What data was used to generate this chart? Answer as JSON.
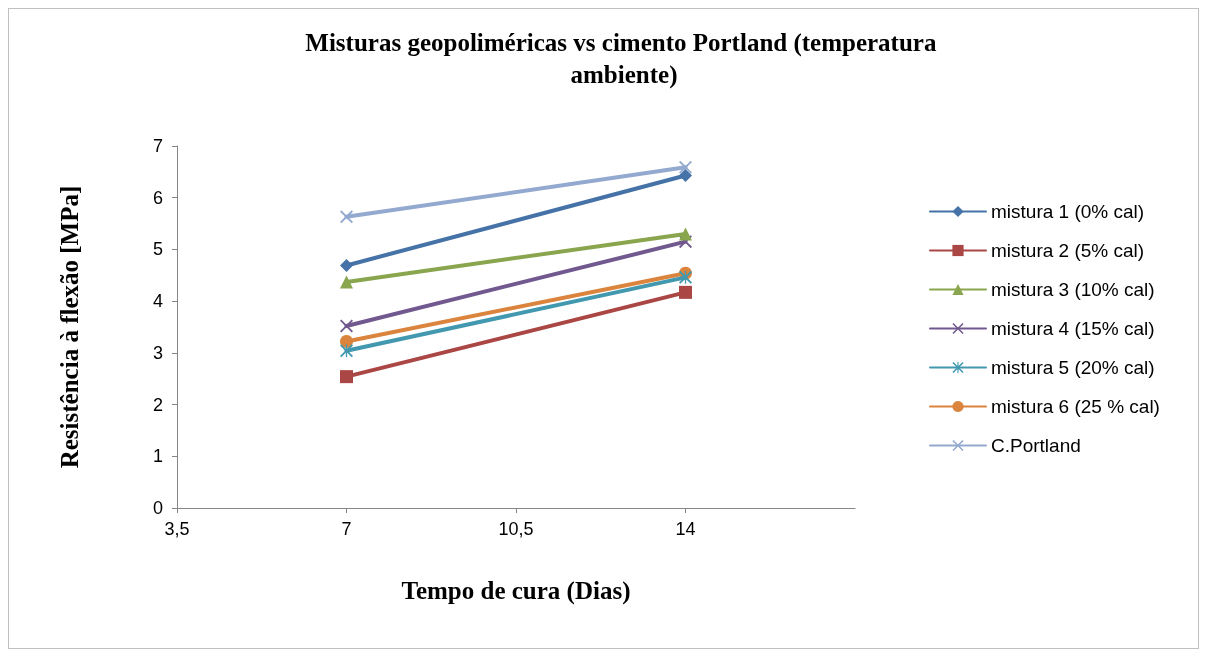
{
  "chart_data": {
    "type": "line",
    "title": "Misturas geopoliméricas vs cimento Portland (temperatura ambiente)",
    "xlabel": "Tempo de cura (Dias)",
    "ylabel": "Resistência à flexão [MPa]",
    "x": [
      7,
      14
    ],
    "series": [
      {
        "name": "mistura 1 (0% cal)",
        "color": "#4572a7",
        "marker": "diamond",
        "values": [
          4.69,
          6.43
        ]
      },
      {
        "name": "mistura 2 (5% cal)",
        "color": "#aa4643",
        "marker": "square",
        "values": [
          2.54,
          4.17
        ]
      },
      {
        "name": "mistura 3 (10% cal)",
        "color": "#89a54e",
        "marker": "triangle",
        "values": [
          4.37,
          5.3
        ]
      },
      {
        "name": "mistura 4 (15% cal)",
        "color": "#71588f",
        "marker": "cross",
        "values": [
          3.52,
          5.15
        ]
      },
      {
        "name": "mistura 5 (20% cal)",
        "color": "#4198af",
        "marker": "star",
        "values": [
          3.04,
          4.46
        ]
      },
      {
        "name": "mistura 6 (25 % cal)",
        "color": "#db843d",
        "marker": "circle",
        "values": [
          3.22,
          4.54
        ]
      },
      {
        "name": "C.Portland",
        "color": "#93a9cf",
        "marker": "cross",
        "values": [
          5.63,
          6.59
        ]
      }
    ],
    "xlim": [
      3.5,
      17.5
    ],
    "xticks": [
      {
        "value": 3.5,
        "label": "3,5"
      },
      7,
      {
        "value": 10.5,
        "label": "10,5"
      },
      14
    ],
    "ylim": [
      0,
      7
    ],
    "yticks": [
      0,
      1,
      2,
      3,
      4,
      5,
      6,
      7
    ],
    "grid": false,
    "legend": "right",
    "line_style": "solid"
  }
}
